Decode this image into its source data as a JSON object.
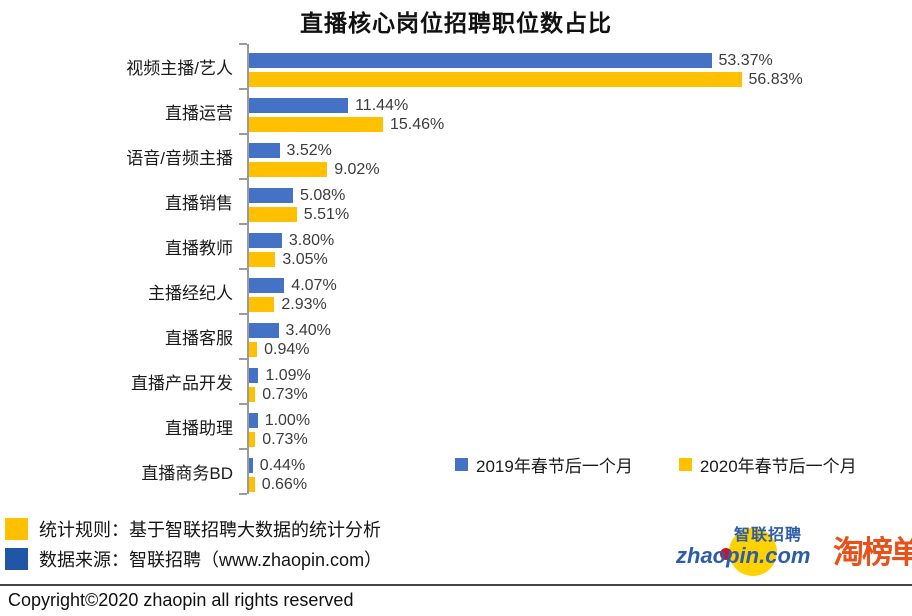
{
  "title": "直播核心岗位招聘职位数占比",
  "chart_data": {
    "type": "bar",
    "orientation": "horizontal",
    "title": "直播核心岗位招聘职位数占比",
    "xlabel": "",
    "ylabel": "",
    "xlim": [
      0,
      60
    ],
    "value_format": "0.00%",
    "grid": false,
    "legend_position": "bottom-right-inside",
    "categories": [
      "视频主播/艺人",
      "直播运营",
      "语音/音频主播",
      "直播销售",
      "直播教师",
      "主播经纪人",
      "直播客服",
      "直播产品开发",
      "直播助理",
      "直播商务BD"
    ],
    "series": [
      {
        "name": "2019年春节后一个月",
        "color": "#4472C4",
        "values": [
          53.37,
          11.44,
          3.52,
          5.08,
          3.8,
          4.07,
          3.4,
          1.09,
          1.0,
          0.44
        ]
      },
      {
        "name": "2020年春节后一个月",
        "color": "#FFC000",
        "values": [
          56.83,
          15.46,
          9.02,
          5.51,
          3.05,
          2.93,
          0.94,
          0.73,
          0.73,
          0.66
        ]
      }
    ]
  },
  "notes": [
    {
      "swatch_color": "#FFC000",
      "text": "统计规则：基于智联招聘大数据的统计分析"
    },
    {
      "swatch_color": "#1F56A6",
      "text": "数据来源：智联招聘（www.zhaopin.com）"
    }
  ],
  "logos": {
    "zhaopin_cn": "智联招聘",
    "zhaopin_domain": "zhaopin.com",
    "taobangdan": "淘榜单"
  },
  "copyright": "Copyright©2020 zhaopin all rights reserved",
  "colors": {
    "bar_blue": "#4472C4",
    "bar_yellow": "#FFC000",
    "axis_gray": "#9B9B9B",
    "taobangdan_orange": "#E8511A",
    "zhaopin_blue": "#2D5CA9"
  }
}
